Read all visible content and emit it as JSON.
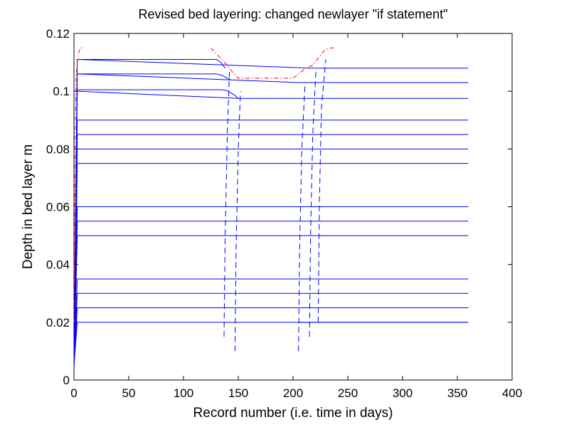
{
  "chart_data": {
    "type": "line",
    "title": "Revised bed layering: changed newlayer \"if statement\"",
    "xlabel": "Record number (i.e. time in days)",
    "ylabel": "Depth in bed layer m",
    "xlim": [
      0,
      400
    ],
    "ylim": [
      0,
      0.12
    ],
    "xticks": [
      0,
      50,
      100,
      150,
      200,
      250,
      300,
      350,
      400
    ],
    "yticks": [
      0,
      0.02,
      0.04,
      0.06,
      0.08,
      0.1,
      0.12
    ],
    "xtick_labels": [
      "0",
      "50",
      "100",
      "150",
      "200",
      "250",
      "300",
      "350",
      "400"
    ],
    "ytick_labels": [
      "0",
      "0.02",
      "0.04",
      "0.06",
      "0.08",
      "0.1",
      "0.12"
    ],
    "grid": false,
    "colors": {
      "layers": "#0000ff",
      "surface": "#ff0000",
      "axes": "#000000"
    },
    "series": [
      {
        "style": "solid",
        "color": "#0000ff",
        "x": [
          0,
          3,
          360
        ],
        "y": [
          0.005,
          0.02,
          0.02
        ]
      },
      {
        "style": "solid",
        "color": "#0000ff",
        "x": [
          0,
          3,
          360
        ],
        "y": [
          0.005,
          0.025,
          0.025
        ]
      },
      {
        "style": "solid",
        "color": "#0000ff",
        "x": [
          0,
          3,
          360
        ],
        "y": [
          0.005,
          0.03,
          0.03
        ]
      },
      {
        "style": "solid",
        "color": "#0000ff",
        "x": [
          0,
          3,
          360
        ],
        "y": [
          0.005,
          0.035,
          0.035
        ]
      },
      {
        "style": "solid",
        "color": "#0000ff",
        "x": [
          0,
          3,
          360
        ],
        "y": [
          0.005,
          0.05,
          0.05
        ]
      },
      {
        "style": "solid",
        "color": "#0000ff",
        "x": [
          0,
          3,
          360
        ],
        "y": [
          0.005,
          0.055,
          0.055
        ]
      },
      {
        "style": "solid",
        "color": "#0000ff",
        "x": [
          0,
          3,
          360
        ],
        "y": [
          0.005,
          0.06,
          0.06
        ]
      },
      {
        "style": "solid",
        "color": "#0000ff",
        "x": [
          0,
          3,
          360
        ],
        "y": [
          0.005,
          0.075,
          0.075
        ]
      },
      {
        "style": "solid",
        "color": "#0000ff",
        "x": [
          0,
          3,
          360
        ],
        "y": [
          0.005,
          0.08,
          0.08
        ]
      },
      {
        "style": "solid",
        "color": "#0000ff",
        "x": [
          0,
          3,
          360
        ],
        "y": [
          0.005,
          0.085,
          0.085
        ]
      },
      {
        "style": "solid",
        "color": "#0000ff",
        "x": [
          0,
          3,
          360
        ],
        "y": [
          0.005,
          0.09,
          0.09
        ]
      },
      {
        "style": "solid",
        "color": "#0000ff",
        "x": [
          0,
          3,
          150,
          360
        ],
        "y": [
          0.005,
          0.1,
          0.0975,
          0.0975
        ]
      },
      {
        "style": "solid",
        "color": "#0000ff",
        "x": [
          0,
          3,
          205,
          360
        ],
        "y": [
          0.005,
          0.106,
          0.103,
          0.103
        ]
      },
      {
        "style": "solid",
        "color": "#0000ff",
        "x": [
          0,
          3,
          215,
          360
        ],
        "y": [
          0.005,
          0.111,
          0.108,
          0.108
        ]
      },
      {
        "style": "solid",
        "color": "#0000ff",
        "x": [
          3,
          130,
          135,
          140,
          143,
          146,
          148,
          150
        ],
        "y": [
          0.1005,
          0.1005,
          0.1005,
          0.1002,
          0.0995,
          0.0988,
          0.0982,
          0.0975
        ]
      },
      {
        "style": "solid",
        "color": "#0000ff",
        "x": [
          3,
          130,
          135,
          140,
          143
        ],
        "y": [
          0.106,
          0.106,
          0.1055,
          0.1045,
          0.104
        ]
      },
      {
        "style": "solid",
        "color": "#0000ff",
        "x": [
          3,
          130,
          134,
          138
        ],
        "y": [
          0.111,
          0.111,
          0.11,
          0.108
        ]
      },
      {
        "style": "solid",
        "color": "#0000ff",
        "x": [
          205,
          215,
          225,
          360
        ],
        "y": [
          0.02,
          0.02,
          0.02,
          0.02
        ]
      },
      {
        "style": "dashed",
        "color": "#0000ff",
        "x": [
          137,
          138,
          140,
          142
        ],
        "y": [
          0.015,
          0.05,
          0.085,
          0.107
        ]
      },
      {
        "style": "dashed",
        "color": "#0000ff",
        "x": [
          147,
          148,
          150,
          152
        ],
        "y": [
          0.01,
          0.045,
          0.08,
          0.1
        ]
      },
      {
        "style": "dashed",
        "color": "#0000ff",
        "x": [
          205,
          206,
          208,
          211
        ],
        "y": [
          0.01,
          0.045,
          0.08,
          0.103
        ]
      },
      {
        "style": "dashed",
        "color": "#0000ff",
        "x": [
          215,
          216,
          218,
          221
        ],
        "y": [
          0.015,
          0.05,
          0.085,
          0.108
        ]
      },
      {
        "style": "dashed",
        "color": "#0000ff",
        "x": [
          223,
          224,
          226,
          230
        ],
        "y": [
          0.02,
          0.06,
          0.095,
          0.111
        ]
      },
      {
        "style": "dashdot",
        "color": "#ff0000",
        "x": [
          0,
          1,
          2,
          3,
          4,
          5,
          6,
          7,
          8
        ],
        "y": [
          0.02,
          0.085,
          0.105,
          0.11,
          0.113,
          0.114,
          0.115,
          0.115,
          0.115
        ]
      },
      {
        "style": "dashdot",
        "color": "#ff0000",
        "x": [
          125,
          130,
          135,
          140,
          145,
          150,
          160,
          180,
          200,
          205,
          212,
          218,
          222,
          226,
          230,
          235,
          238
        ],
        "y": [
          0.115,
          0.113,
          0.111,
          0.109,
          0.1065,
          0.1045,
          0.1045,
          0.1045,
          0.1045,
          0.106,
          0.108,
          0.109,
          0.111,
          0.113,
          0.1145,
          0.115,
          0.115
        ]
      }
    ]
  }
}
